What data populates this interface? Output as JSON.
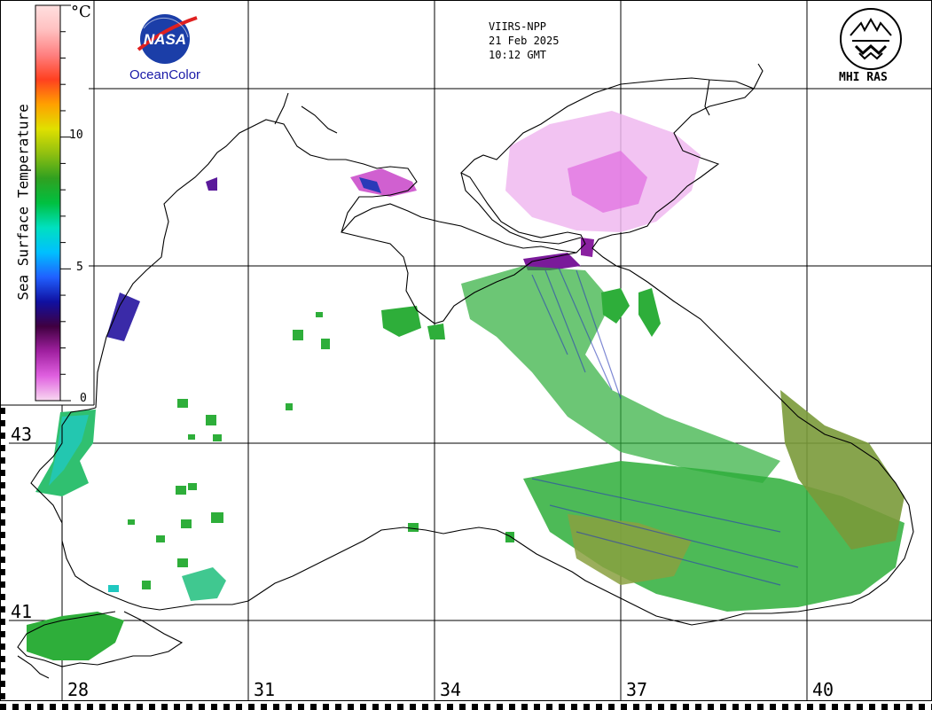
{
  "header": {
    "satellite": "VIIRS-NPP",
    "date": "21 Feb 2025",
    "time": "10:12 GMT"
  },
  "logos": {
    "nasa_text": "NASA",
    "nasa_caption": "OceanColor",
    "mhi_caption": "MHI RAS"
  },
  "legend": {
    "title": "Sea Surface Temperature",
    "unit": "°C",
    "ticks": [
      "10",
      "5",
      "0"
    ],
    "tick_values": [
      10,
      5,
      0
    ],
    "min": 0,
    "max": 15,
    "colors": [
      "#f8d8f0",
      "#e060e0",
      "#a020a0",
      "#400040",
      "#1010a0",
      "#2060ff",
      "#00c0ff",
      "#00e0c0",
      "#00c040",
      "#30a020",
      "#90c010",
      "#e0e000",
      "#ffa000",
      "#ff4020",
      "#ff8080",
      "#ffc0c0",
      "#ffe0e0"
    ]
  },
  "grid": {
    "latitudes": [
      "43",
      "41"
    ],
    "longitudes": [
      "28",
      "31",
      "34",
      "37",
      "40"
    ]
  },
  "colors": {
    "coast": "#000000",
    "sst_green": "#2eae3a",
    "sst_olive": "#7a9a3a",
    "sst_cyan": "#20c8c0",
    "sst_blue": "#2a3ab8",
    "sst_magenta": "#e070e0",
    "sst_pale_magenta": "#f0b8f0",
    "sst_purple": "#7a1a9a"
  }
}
